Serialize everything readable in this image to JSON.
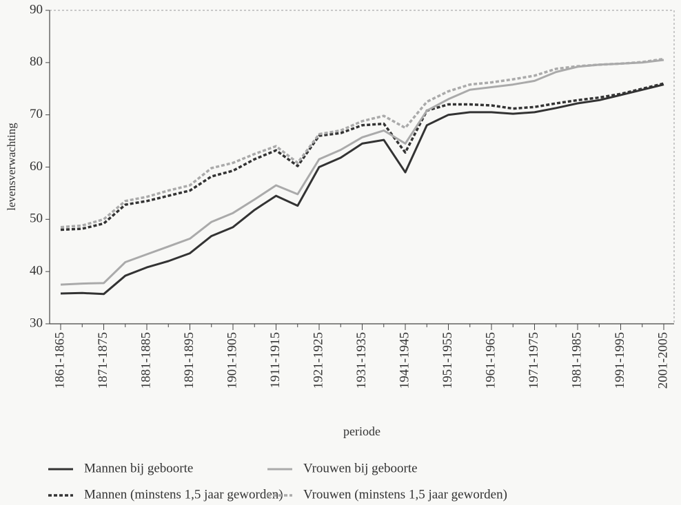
{
  "chart_data": {
    "type": "line",
    "xlabel": "periode",
    "ylabel": "levensverwachting",
    "categories": [
      "1861-1865",
      null,
      "1871-1875",
      null,
      "1881-1885",
      null,
      "1891-1895",
      null,
      "1901-1905",
      null,
      "1911-1915",
      null,
      "1921-1925",
      null,
      "1931-1935",
      null,
      "1941-1945",
      null,
      "1951-1955",
      null,
      "1961-1965",
      null,
      "1971-1975",
      null,
      "1981-1985",
      null,
      "1991-1995",
      null,
      "2001-2005"
    ],
    "ylim": [
      30,
      90
    ],
    "yticks": [
      30,
      40,
      50,
      60,
      70,
      80,
      90
    ],
    "series": [
      {
        "name": "Mannen bij geboorte",
        "color": "#333333",
        "style": "solid",
        "values": [
          35.8,
          35.9,
          35.7,
          39.2,
          40.8,
          42,
          43.5,
          46.8,
          48.5,
          51.8,
          54.5,
          52.6,
          60,
          61.8,
          64.5,
          65.2,
          59,
          68,
          70,
          70.5,
          70.5,
          70.2,
          70.5,
          71.3,
          72.2,
          72.8,
          73.8,
          74.8,
          75.8
        ]
      },
      {
        "name": "Mannen (minstens 1,5 jaar geworden)",
        "color": "#333333",
        "style": "dashed",
        "values": [
          48,
          48.2,
          49.2,
          52.8,
          53.5,
          54.5,
          55.5,
          58.2,
          59.3,
          61.5,
          63.2,
          60.2,
          66,
          66.5,
          68,
          68.3,
          62.8,
          70.8,
          72,
          72,
          71.8,
          71.2,
          71.5,
          72.2,
          72.8,
          73.3,
          74,
          75,
          76
        ]
      },
      {
        "name": "Vrouwen bij geboorte",
        "color": "#aaaaaa",
        "style": "solid",
        "values": [
          37.5,
          37.7,
          37.8,
          41.8,
          43.3,
          44.8,
          46.3,
          49.5,
          51.2,
          53.8,
          56.5,
          54.8,
          61.5,
          63.3,
          65.7,
          67,
          64.5,
          70.8,
          73,
          74.8,
          75.3,
          75.8,
          76.5,
          78.2,
          79.2,
          79.6,
          79.8,
          80,
          80.5
        ]
      },
      {
        "name": "Vrouwen (minstens 1,5 jaar geworden)",
        "color": "#aaaaaa",
        "style": "dashed",
        "values": [
          48.5,
          48.8,
          50,
          53.5,
          54.3,
          55.5,
          56.5,
          59.8,
          60.8,
          62.5,
          64,
          60.8,
          66.3,
          67,
          68.8,
          69.8,
          67.5,
          72.5,
          74.5,
          75.8,
          76.2,
          76.8,
          77.5,
          78.8,
          79.3,
          79.6,
          79.8,
          80.1,
          80.7
        ]
      }
    ]
  }
}
